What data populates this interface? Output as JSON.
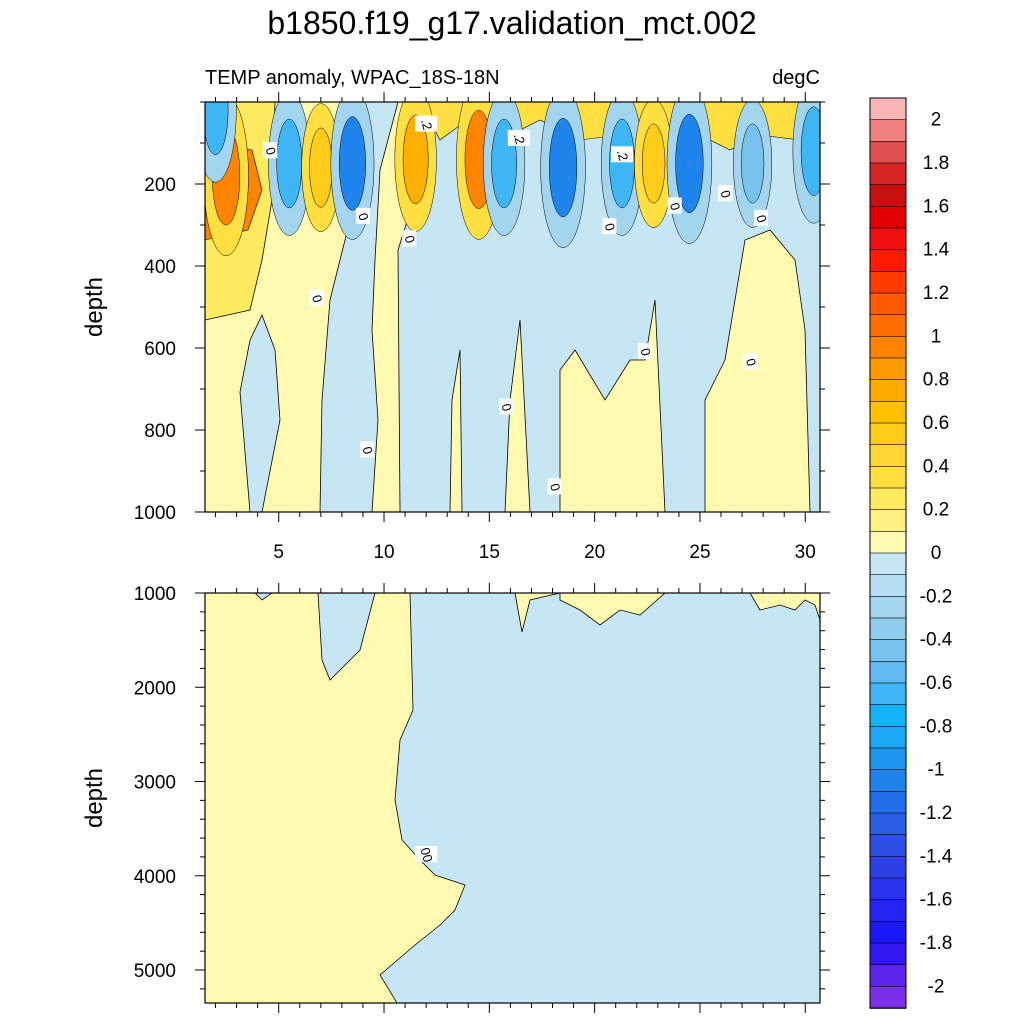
{
  "chart_data": [
    {
      "type": "heatmap",
      "panel": "upper",
      "title": "b1850.f19_g17.validation_mct.002",
      "subtitle_left": "TEMP anomaly, WPAC_18S-18N",
      "subtitle_right": "degC",
      "ylabel": "depth",
      "xlim": [
        1.5,
        30.7
      ],
      "ylim": [
        0,
        1000
      ],
      "y_inverted": true,
      "x_ticks": [
        5,
        10,
        15,
        20,
        25,
        30
      ],
      "x_tick_labels": [
        "5",
        "10",
        "15",
        "20",
        "25",
        "30"
      ],
      "y_ticks": [
        200,
        400,
        600,
        800,
        1000
      ],
      "y_tick_labels": [
        "200",
        "400",
        "600",
        "800",
        "1000"
      ],
      "contour_labels": [
        {
          "x": 4.6,
          "y": 120,
          "text": "0"
        },
        {
          "x": 9.0,
          "y": 280,
          "text": "0"
        },
        {
          "x": 11.2,
          "y": 335,
          "text": "0"
        },
        {
          "x": 6.8,
          "y": 480,
          "text": "0"
        },
        {
          "x": 9.2,
          "y": 850,
          "text": "0"
        },
        {
          "x": 12.0,
          "y": 55,
          "text": ".2"
        },
        {
          "x": 16.4,
          "y": 90,
          "text": ".2"
        },
        {
          "x": 21.3,
          "y": 130,
          "text": ".2"
        },
        {
          "x": 23.8,
          "y": 255,
          "text": "0"
        },
        {
          "x": 20.7,
          "y": 305,
          "text": "0"
        },
        {
          "x": 26.2,
          "y": 225,
          "text": "0"
        },
        {
          "x": 27.9,
          "y": 285,
          "text": "0"
        },
        {
          "x": 15.8,
          "y": 745,
          "text": "0"
        },
        {
          "x": 18.1,
          "y": 940,
          "text": "0"
        },
        {
          "x": 22.4,
          "y": 610,
          "text": "0"
        },
        {
          "x": 27.4,
          "y": 635,
          "text": "0"
        }
      ],
      "features": [
        {
          "x": 2.5,
          "y": 180,
          "value": 0.8,
          "sign": "warm"
        },
        {
          "x": 5.5,
          "y": 150,
          "value": -0.6,
          "sign": "cool"
        },
        {
          "x": 7.0,
          "y": 160,
          "value": 0.4,
          "sign": "warm"
        },
        {
          "x": 8.5,
          "y": 150,
          "value": -0.7,
          "sign": "cool"
        },
        {
          "x": 11.5,
          "y": 140,
          "value": 0.6,
          "sign": "warm"
        },
        {
          "x": 14.5,
          "y": 140,
          "value": 0.8,
          "sign": "warm"
        },
        {
          "x": 15.7,
          "y": 150,
          "value": -0.6,
          "sign": "cool"
        },
        {
          "x": 18.5,
          "y": 160,
          "value": -0.8,
          "sign": "cool"
        },
        {
          "x": 21.3,
          "y": 150,
          "value": -0.6,
          "sign": "cool"
        },
        {
          "x": 22.8,
          "y": 150,
          "value": 0.4,
          "sign": "warm"
        },
        {
          "x": 24.5,
          "y": 150,
          "value": -0.8,
          "sign": "cool"
        },
        {
          "x": 27.5,
          "y": 150,
          "value": -0.4,
          "sign": "cool"
        },
        {
          "x": 30.4,
          "y": 120,
          "value": -0.6,
          "sign": "cool"
        },
        {
          "x": 2.0,
          "y": 20,
          "value": -0.6,
          "sign": "cool"
        }
      ]
    },
    {
      "type": "heatmap",
      "panel": "lower",
      "ylabel": "depth",
      "xlim": [
        1.5,
        30.7
      ],
      "ylim": [
        1000,
        5350
      ],
      "y_inverted": true,
      "y_ticks": [
        1000,
        2000,
        3000,
        4000,
        5000
      ],
      "y_tick_labels": [
        "1000",
        "2000",
        "3000",
        "4000",
        "5000"
      ],
      "contour_labels": [
        {
          "x": 12.0,
          "y": 3780,
          "text": "00"
        }
      ]
    }
  ],
  "colorbar": {
    "labels": [
      "2",
      "1.8",
      "1.6",
      "1.4",
      "1.2",
      "1",
      "0.8",
      "0.6",
      "0.4",
      "0.2",
      "0",
      "-0.2",
      "-0.4",
      "-0.6",
      "-0.8",
      "-1",
      "-1.2",
      "-1.4",
      "-1.6",
      "-1.8",
      "-2"
    ],
    "colors": [
      "#F8B5B5",
      "#F08080",
      "#E05050",
      "#D42424",
      "#C81010",
      "#E00000",
      "#F01010",
      "#FF1A00",
      "#FF3B00",
      "#FF5A00",
      "#FF6E00",
      "#FF8400",
      "#FF9A00",
      "#FFAA00",
      "#FFC000",
      "#FFCC1A",
      "#FFD633",
      "#FFE040",
      "#FFEA60",
      "#FFF280",
      "#FFFAB0",
      "#C7E6F4",
      "#B5DEF2",
      "#A3D6EE",
      "#8ECDEE",
      "#78C3EE",
      "#60BAF0",
      "#3FB6F5",
      "#14B4F8",
      "#1CA8F4",
      "#1E96F0",
      "#1E84EC",
      "#1E6FE8",
      "#2A5EE4",
      "#2F50E4",
      "#2D40E6",
      "#2A34EE",
      "#2424F4",
      "#1A18F8",
      "#3318F4",
      "#5C24EC",
      "#7A2FE8"
    ]
  }
}
